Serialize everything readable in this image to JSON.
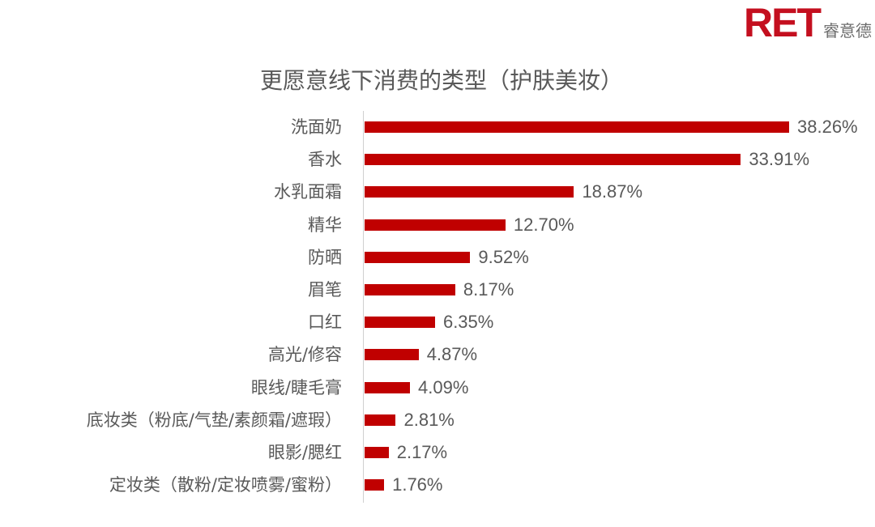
{
  "logo": {
    "mark": "RET",
    "name_cn": "睿意德"
  },
  "colors": {
    "bar": "#c00000",
    "brand": "#c40f1f",
    "text": "#595959",
    "axis": "#d0d0d0"
  },
  "chart_data": {
    "type": "bar",
    "orientation": "horizontal",
    "title": "更愿意线下消费的类型（护肤美妆）",
    "xlabel": "",
    "ylabel": "",
    "categories": [
      "洗面奶",
      "香水",
      "水乳面霜",
      "精华",
      "防晒",
      "眉笔",
      "口红",
      "高光/修容",
      "眼线/睫毛膏",
      "底妆类（粉底/气垫/素颜霜/遮瑕）",
      "眼影/腮红",
      "定妆类（散粉/定妆喷雾/蜜粉）"
    ],
    "values": [
      38.26,
      33.91,
      18.87,
      12.7,
      9.52,
      8.17,
      6.35,
      4.87,
      4.09,
      2.81,
      2.17,
      1.76
    ],
    "value_labels": [
      "38.26%",
      "33.91%",
      "18.87%",
      "12.70%",
      "9.52%",
      "8.17%",
      "6.35%",
      "4.87%",
      "4.09%",
      "2.81%",
      "2.17%",
      "1.76%"
    ],
    "unit": "%",
    "xlim": [
      0,
      40
    ],
    "grid": false,
    "legend": null
  }
}
